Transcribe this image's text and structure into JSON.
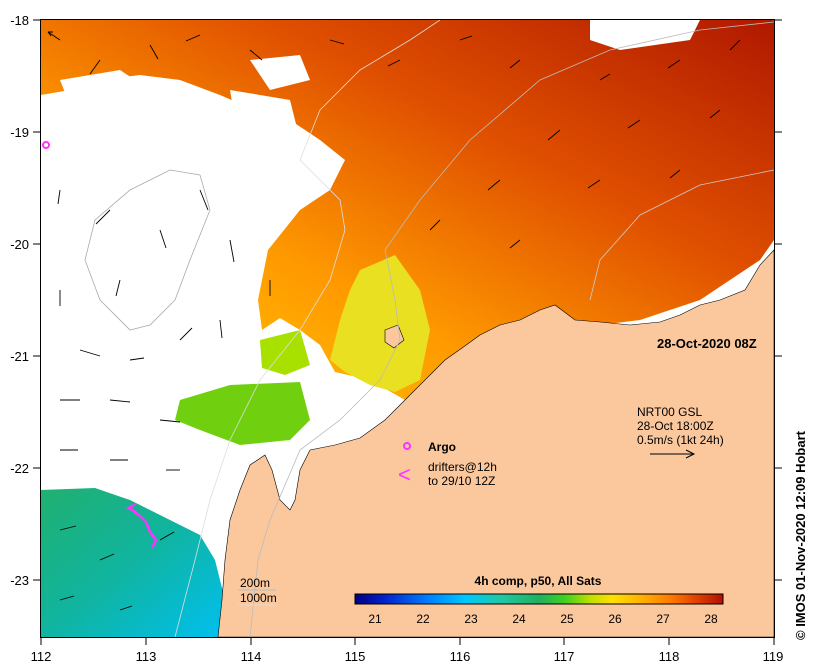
{
  "map": {
    "date_label": "28-Oct-2020 08Z",
    "credit": "© IMOS 01-Nov-2020 12:09 Hobart",
    "x_axis_ticks": [
      "112",
      "113",
      "114",
      "115",
      "116",
      "117",
      "118",
      "119"
    ],
    "y_axis_ticks": [
      "-18",
      "-19",
      "-20",
      "-21",
      "-22",
      "-23"
    ],
    "current_product": {
      "line1": "NRT00 GSL",
      "line2": "28-Oct 18:00Z",
      "line3": "0.5m/s (1kt 24h)"
    },
    "legend": {
      "argo_label": "Argo",
      "drifter_symbol": "<",
      "drifter_line1": "drifters@12h",
      "drifter_line2": "to 29/10 12Z"
    },
    "depth_contours": {
      "line1": "200m",
      "line2": "1000m"
    },
    "colorbar": {
      "title": "4h comp, p50, All Sats",
      "ticks": [
        "21",
        "22",
        "23",
        "24",
        "25",
        "26",
        "27",
        "28"
      ]
    },
    "colors": {
      "land": "#fbc89e",
      "cloud_mask": "#ffffff",
      "argo_marker": "#ff33ff",
      "drifter_track": "#ff33ff",
      "sst_palette": [
        "#00007f",
        "#0022cc",
        "#0080ff",
        "#00c8ff",
        "#20c8a0",
        "#20b060",
        "#40d020",
        "#c0e000",
        "#ffe000",
        "#ffb000",
        "#ff7800",
        "#e04000",
        "#b01000"
      ]
    }
  }
}
